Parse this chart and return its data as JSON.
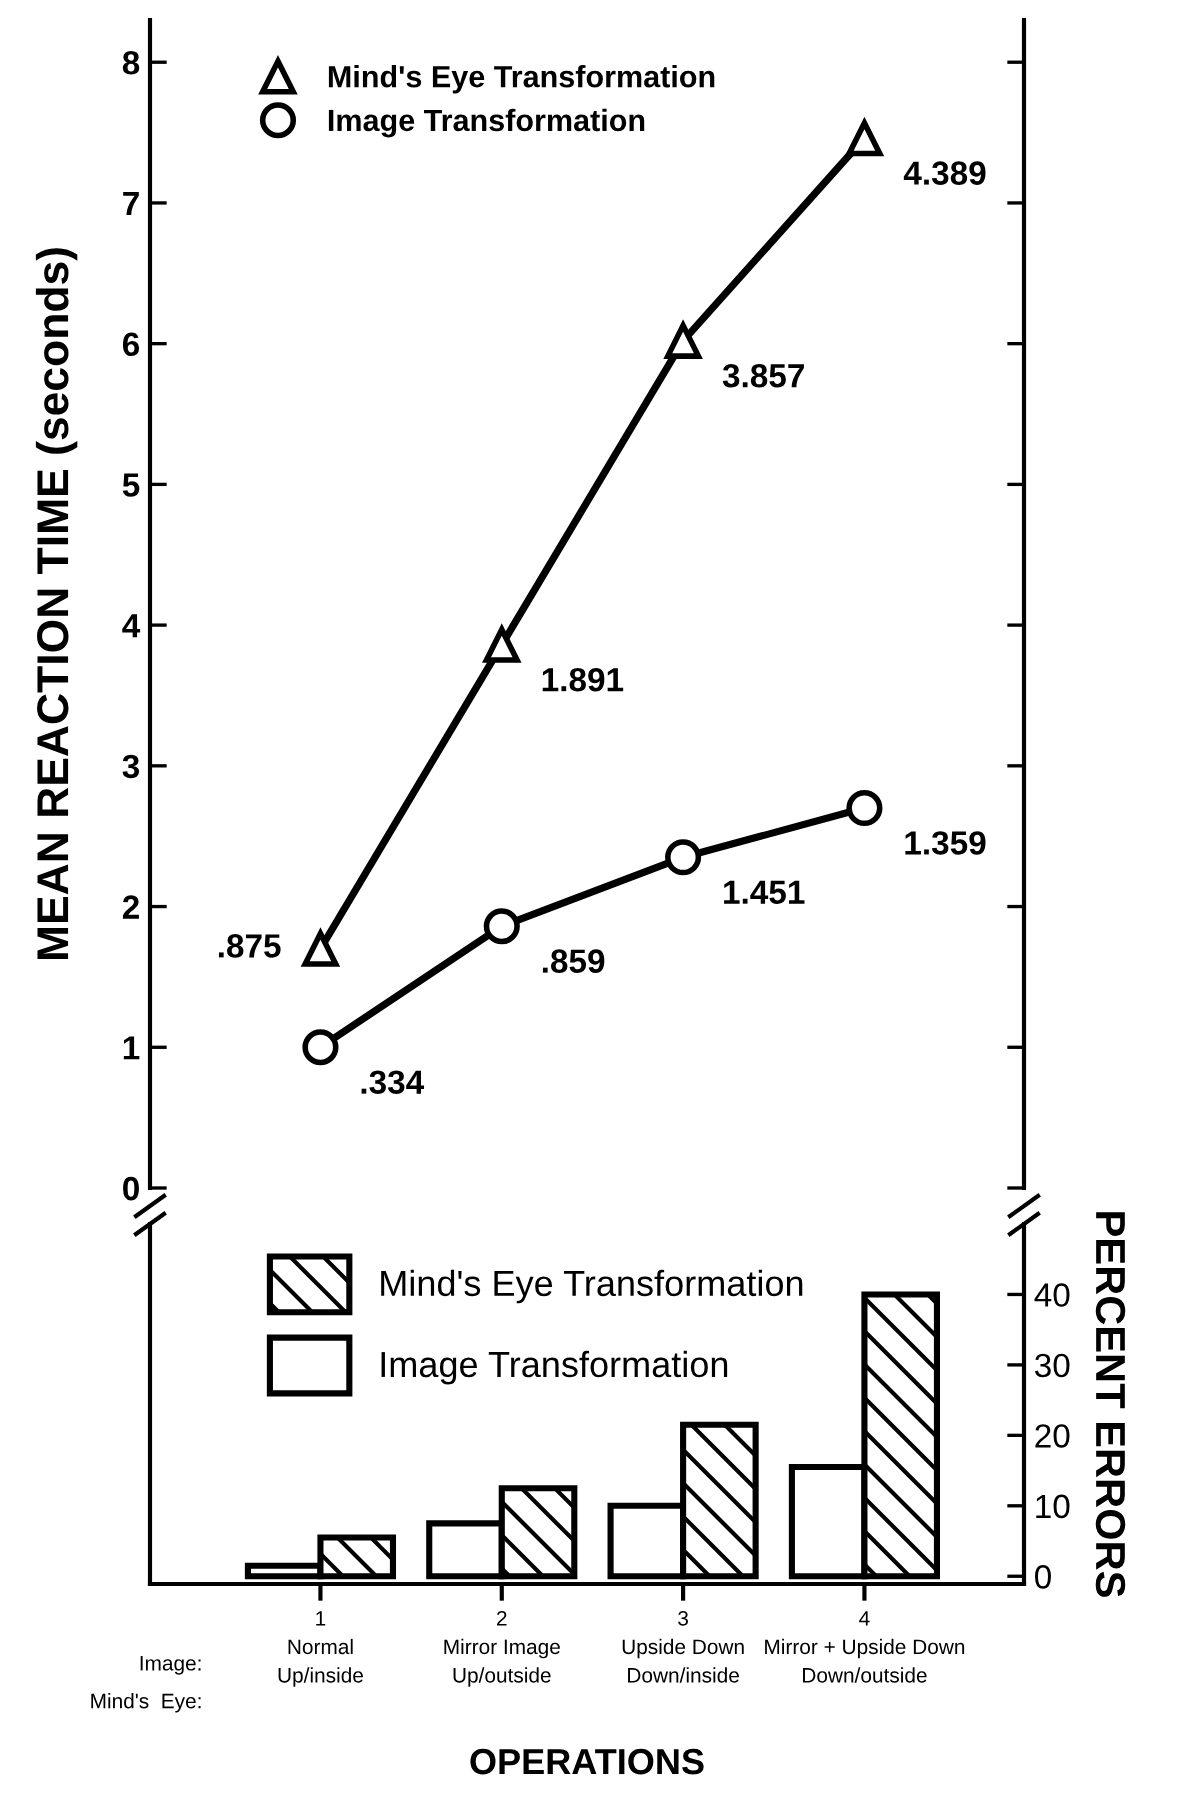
{
  "chart_data": [
    {
      "type": "line",
      "ylabel": "MEAN REACTION TIME (seconds)",
      "categories": [
        "1",
        "2",
        "3",
        "4"
      ],
      "ylim": [
        0,
        8.3
      ],
      "yticks": [
        0,
        1,
        2,
        3,
        4,
        5,
        6,
        7,
        8
      ],
      "tick_labels": "y",
      "legend": "top left",
      "grid": false,
      "series": [
        {
          "name": "Mind's Eye Transformation",
          "color": "#000000",
          "marker": "triangle",
          "values": [
            1.7,
            3.86,
            6.02,
            7.46
          ]
        },
        {
          "name": "Image Transformation",
          "color": "#000000",
          "marker": "circle",
          "values": [
            1.0,
            1.86,
            2.35,
            2.7
          ]
        }
      ],
      "annotations": [
        {
          "text": ".875",
          "x": "1",
          "y": 1.7
        },
        {
          "text": "1.891",
          "x": "2",
          "y": 3.86
        },
        {
          "text": "3.857",
          "x": "3",
          "y": 6.02
        },
        {
          "text": "4.389",
          "x": "4",
          "y": 7.46
        },
        {
          "text": ".334",
          "x": "1",
          "y": 1.0
        },
        {
          "text": ".859",
          "x": "2",
          "y": 1.86
        },
        {
          "text": "1.451",
          "x": "3",
          "y": 2.35
        },
        {
          "text": "1.359",
          "x": "4",
          "y": 2.7
        }
      ]
    },
    {
      "type": "bar",
      "xlabel": "OPERATIONS",
      "y2label": "PERCENT ERRORS",
      "categories": [
        "1\nNormal\nUp/inside",
        "2\nMirror Image\nUp/outside",
        "3\nUpside Down\nDown/inside",
        "4\nMirror + Upside Down\nDown/outside"
      ],
      "y2lim": [
        -1.1,
        50
      ],
      "y2ticks": [
        0,
        10,
        20,
        30,
        40
      ],
      "legend": "top left",
      "grid": false,
      "series": [
        {
          "name": "Image Transformation",
          "color": "#ffffff",
          "axis": "y2",
          "values": [
            1.5,
            7.5,
            10,
            15.5
          ]
        },
        {
          "name": "Mind's Eye Transformation",
          "color": "#000000",
          "axis": "y2",
          "values": [
            5.5,
            12.5,
            21.5,
            40
          ]
        }
      ],
      "annotations": [
        "Image:",
        "Mind's  Eye:"
      ]
    }
  ]
}
